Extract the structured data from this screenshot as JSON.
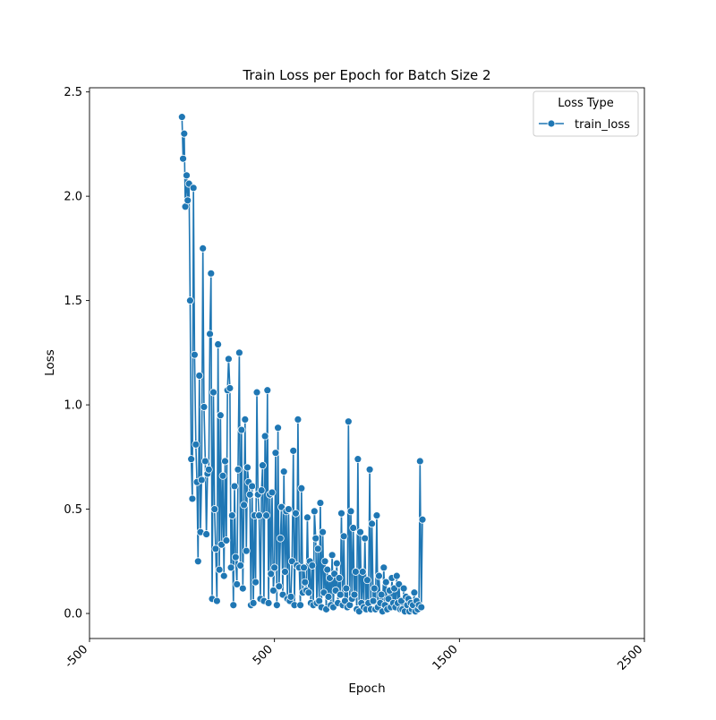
{
  "chart_data": {
    "type": "line",
    "title": "Train Loss per Epoch for Batch Size 2",
    "xlabel": "Epoch",
    "ylabel": "Loss",
    "xlim": [
      -500,
      2500
    ],
    "ylim": [
      -0.12,
      2.52
    ],
    "xticks": [
      -500,
      500,
      1500,
      2500
    ],
    "xtick_labels": [
      "-500",
      "500",
      "1500",
      "2500"
    ],
    "yticks": [
      0.0,
      0.5,
      1.0,
      1.5,
      2.0,
      2.5
    ],
    "ytick_labels": [
      "0.0",
      "0.5",
      "1.0",
      "1.5",
      "2.0",
      "2.5"
    ],
    "grid": false,
    "legend": {
      "title": "Loss Type",
      "placement": "top-right"
    },
    "series": [
      {
        "name": "train_loss",
        "color": "#1f77b4",
        "marker": "circle",
        "points": [
          [
            0,
            2.38
          ],
          [
            6,
            2.18
          ],
          [
            12,
            2.3
          ],
          [
            18,
            1.95
          ],
          [
            25,
            2.1
          ],
          [
            31,
            1.98
          ],
          [
            38,
            2.06
          ],
          [
            44,
            1.5
          ],
          [
            50,
            0.74
          ],
          [
            56,
            0.55
          ],
          [
            62,
            2.04
          ],
          [
            68,
            1.24
          ],
          [
            75,
            0.81
          ],
          [
            81,
            0.63
          ],
          [
            87,
            0.25
          ],
          [
            94,
            1.14
          ],
          [
            100,
            0.39
          ],
          [
            106,
            0.64
          ],
          [
            113,
            1.75
          ],
          [
            119,
            0.99
          ],
          [
            126,
            0.73
          ],
          [
            132,
            0.38
          ],
          [
            138,
            0.67
          ],
          [
            145,
            0.69
          ],
          [
            151,
            1.34
          ],
          [
            157,
            1.63
          ],
          [
            163,
            0.07
          ],
          [
            170,
            1.06
          ],
          [
            176,
            0.5
          ],
          [
            182,
            0.31
          ],
          [
            189,
            0.06
          ],
          [
            195,
            1.29
          ],
          [
            202,
            0.21
          ],
          [
            208,
            0.95
          ],
          [
            214,
            0.33
          ],
          [
            221,
            0.66
          ],
          [
            227,
            0.18
          ],
          [
            233,
            0.73
          ],
          [
            240,
            0.35
          ],
          [
            246,
            1.07
          ],
          [
            252,
            1.22
          ],
          [
            259,
            1.08
          ],
          [
            265,
            0.22
          ],
          [
            271,
            0.47
          ],
          [
            278,
            0.04
          ],
          [
            284,
            0.61
          ],
          [
            290,
            0.27
          ],
          [
            297,
            0.14
          ],
          [
            303,
            0.69
          ],
          [
            310,
            1.25
          ],
          [
            316,
            0.23
          ],
          [
            322,
            0.88
          ],
          [
            329,
            0.12
          ],
          [
            335,
            0.52
          ],
          [
            341,
            0.93
          ],
          [
            348,
            0.3
          ],
          [
            354,
            0.7
          ],
          [
            360,
            0.63
          ],
          [
            367,
            0.57
          ],
          [
            373,
            0.04
          ],
          [
            379,
            0.61
          ],
          [
            386,
            0.05
          ],
          [
            392,
            0.47
          ],
          [
            398,
            0.15
          ],
          [
            405,
            1.06
          ],
          [
            411,
            0.57
          ],
          [
            417,
            0.47
          ],
          [
            424,
            0.07
          ],
          [
            430,
            0.59
          ],
          [
            436,
            0.71
          ],
          [
            443,
            0.06
          ],
          [
            449,
            0.85
          ],
          [
            456,
            0.47
          ],
          [
            462,
            1.07
          ],
          [
            468,
            0.05
          ],
          [
            475,
            0.57
          ],
          [
            481,
            0.19
          ],
          [
            487,
            0.58
          ],
          [
            494,
            0.11
          ],
          [
            500,
            0.22
          ],
          [
            506,
            0.77
          ],
          [
            513,
            0.04
          ],
          [
            519,
            0.89
          ],
          [
            525,
            0.13
          ],
          [
            532,
            0.36
          ],
          [
            538,
            0.51
          ],
          [
            545,
            0.09
          ],
          [
            551,
            0.68
          ],
          [
            557,
            0.2
          ],
          [
            564,
            0.49
          ],
          [
            570,
            0.07
          ],
          [
            576,
            0.5
          ],
          [
            583,
            0.06
          ],
          [
            589,
            0.08
          ],
          [
            595,
            0.25
          ],
          [
            602,
            0.78
          ],
          [
            608,
            0.04
          ],
          [
            615,
            0.48
          ],
          [
            621,
            0.23
          ],
          [
            627,
            0.93
          ],
          [
            634,
            0.22
          ],
          [
            640,
            0.04
          ],
          [
            646,
            0.6
          ],
          [
            653,
            0.1
          ],
          [
            659,
            0.22
          ],
          [
            665,
            0.15
          ],
          [
            672,
            0.11
          ],
          [
            678,
            0.46
          ],
          [
            685,
            0.1
          ],
          [
            691,
            0.25
          ],
          [
            697,
            0.05
          ],
          [
            704,
            0.23
          ],
          [
            710,
            0.04
          ],
          [
            716,
            0.49
          ],
          [
            723,
            0.36
          ],
          [
            729,
            0.05
          ],
          [
            735,
            0.31
          ],
          [
            742,
            0.06
          ],
          [
            748,
            0.53
          ],
          [
            754,
            0.03
          ],
          [
            761,
            0.39
          ],
          [
            767,
            0.1
          ],
          [
            773,
            0.25
          ],
          [
            780,
            0.02
          ],
          [
            786,
            0.21
          ],
          [
            792,
            0.08
          ],
          [
            799,
            0.17
          ],
          [
            805,
            0.04
          ],
          [
            812,
            0.28
          ],
          [
            818,
            0.03
          ],
          [
            824,
            0.19
          ],
          [
            831,
            0.11
          ],
          [
            837,
            0.24
          ],
          [
            843,
            0.05
          ],
          [
            850,
            0.17
          ],
          [
            856,
            0.09
          ],
          [
            862,
            0.48
          ],
          [
            869,
            0.04
          ],
          [
            875,
            0.37
          ],
          [
            881,
            0.06
          ],
          [
            888,
            0.12
          ],
          [
            894,
            0.03
          ],
          [
            900,
            0.92
          ],
          [
            907,
            0.04
          ],
          [
            913,
            0.49
          ],
          [
            919,
            0.07
          ],
          [
            926,
            0.41
          ],
          [
            932,
            0.09
          ],
          [
            939,
            0.2
          ],
          [
            945,
            0.02
          ],
          [
            951,
            0.74
          ],
          [
            958,
            0.01
          ],
          [
            964,
            0.39
          ],
          [
            970,
            0.05
          ],
          [
            977,
            0.2
          ],
          [
            983,
            0.03
          ],
          [
            989,
            0.36
          ],
          [
            996,
            0.02
          ],
          [
            1002,
            0.16
          ],
          [
            1008,
            0.05
          ],
          [
            1015,
            0.69
          ],
          [
            1021,
            0.02
          ],
          [
            1027,
            0.43
          ],
          [
            1034,
            0.06
          ],
          [
            1040,
            0.12
          ],
          [
            1046,
            0.02
          ],
          [
            1053,
            0.47
          ],
          [
            1059,
            0.03
          ],
          [
            1065,
            0.18
          ],
          [
            1072,
            0.05
          ],
          [
            1078,
            0.09
          ],
          [
            1084,
            0.01
          ],
          [
            1091,
            0.22
          ],
          [
            1097,
            0.04
          ],
          [
            1103,
            0.15
          ],
          [
            1110,
            0.02
          ],
          [
            1116,
            0.07
          ],
          [
            1123,
            0.11
          ],
          [
            1129,
            0.03
          ],
          [
            1135,
            0.17
          ],
          [
            1142,
            0.05
          ],
          [
            1148,
            0.12
          ],
          [
            1154,
            0.03
          ],
          [
            1161,
            0.18
          ],
          [
            1167,
            0.05
          ],
          [
            1173,
            0.14
          ],
          [
            1180,
            0.02
          ],
          [
            1186,
            0.06
          ],
          [
            1192,
            0.02
          ],
          [
            1199,
            0.12
          ],
          [
            1205,
            0.01
          ],
          [
            1211,
            0.08
          ],
          [
            1218,
            0.04
          ],
          [
            1224,
            0.07
          ],
          [
            1230,
            0.01
          ],
          [
            1237,
            0.05
          ],
          [
            1243,
            0.02
          ],
          [
            1249,
            0.04
          ],
          [
            1256,
            0.1
          ],
          [
            1262,
            0.01
          ],
          [
            1268,
            0.06
          ],
          [
            1275,
            0.02
          ],
          [
            1281,
            0.04
          ],
          [
            1287,
            0.73
          ],
          [
            1294,
            0.03
          ],
          [
            1300,
            0.45
          ]
        ]
      }
    ]
  }
}
